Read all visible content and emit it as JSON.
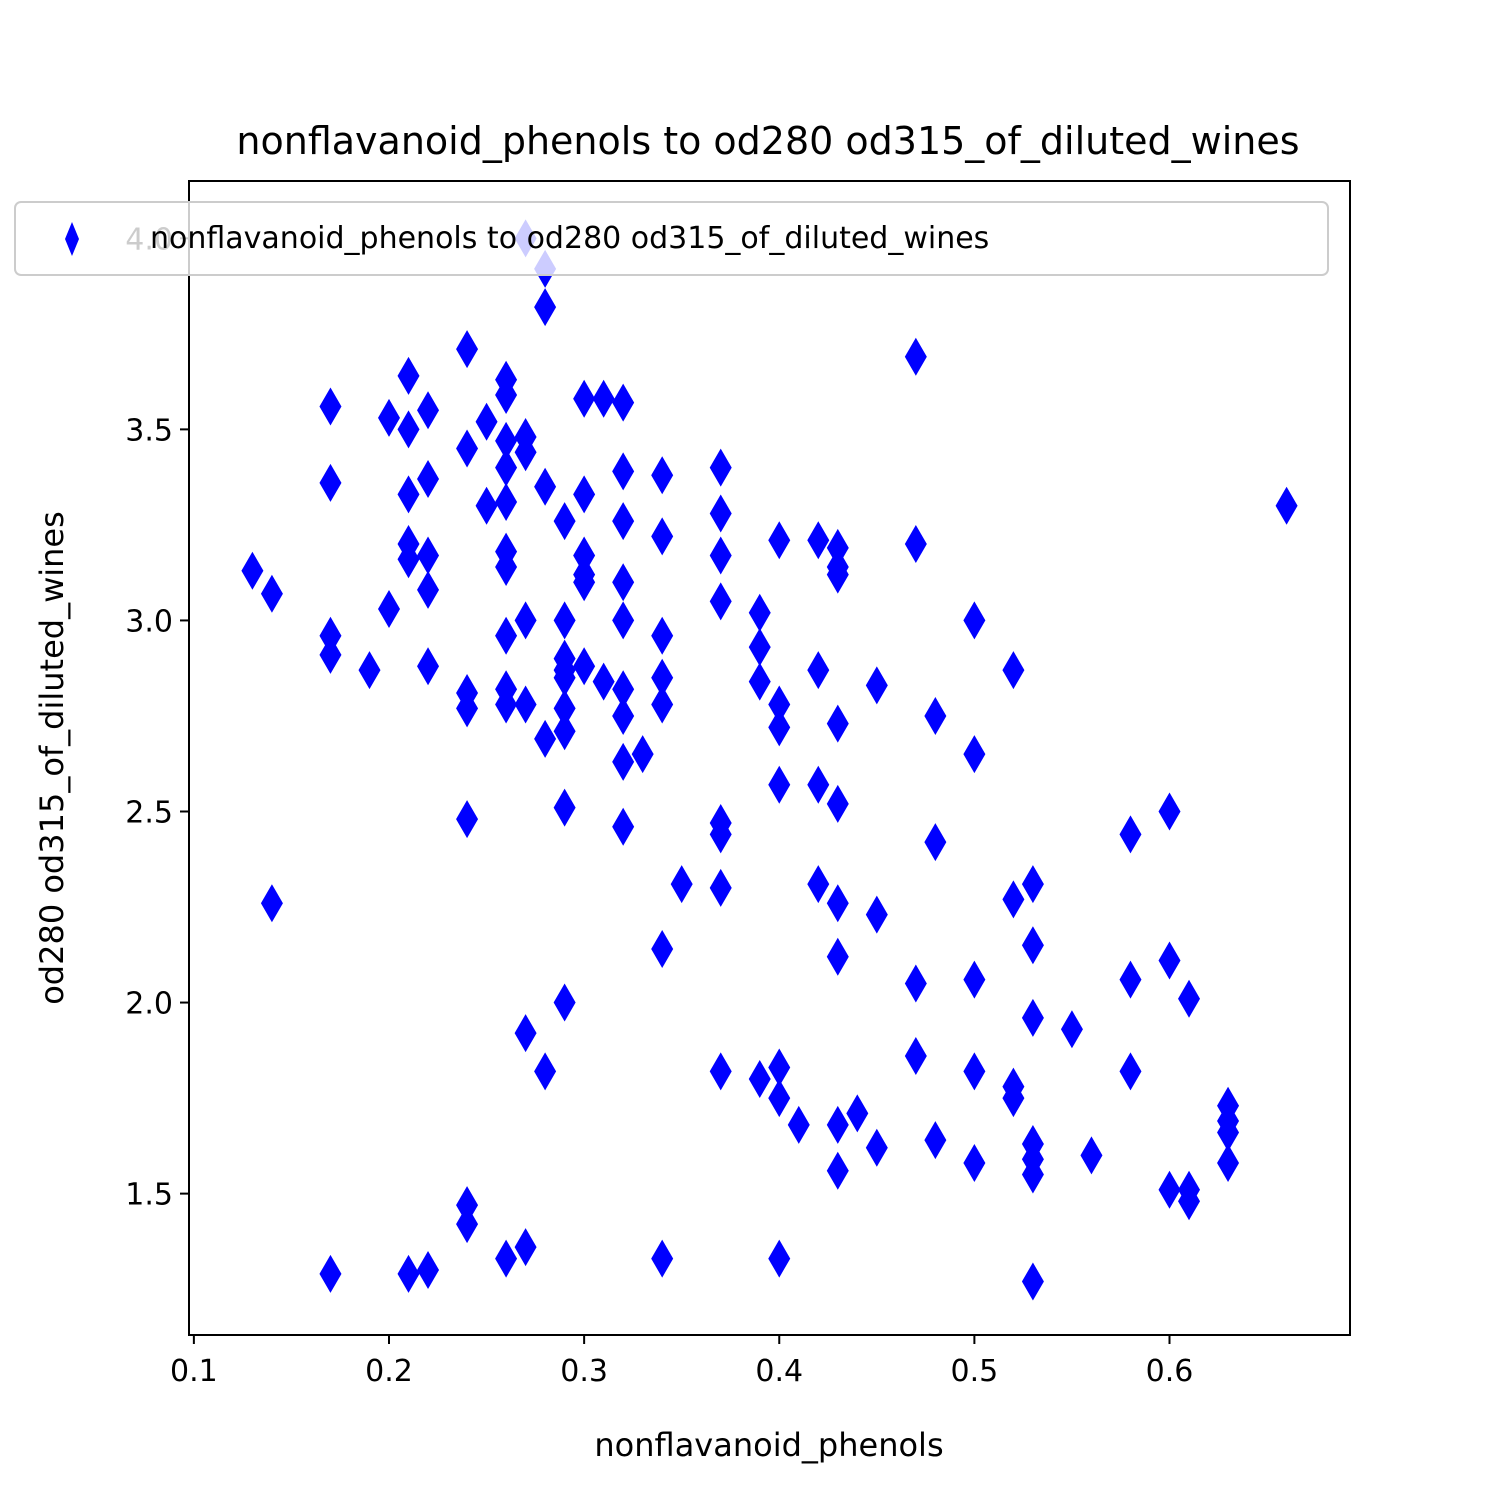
{
  "chart_data": {
    "type": "scatter",
    "title": "nonflavanoid_phenols to od280 od315_of_diluted_wines",
    "xlabel": "nonflavanoid_phenols",
    "ylabel": "od280 od315_of_diluted_wines",
    "xlim": [
      0.0975,
      0.6925
    ],
    "ylim": [
      1.13,
      4.15
    ],
    "xticks": [
      0.1,
      0.2,
      0.3,
      0.4,
      0.5,
      0.6
    ],
    "xtick_labels": [
      "0.1",
      "0.2",
      "0.3",
      "0.4",
      "0.5",
      "0.6"
    ],
    "yticks": [
      1.5,
      2.0,
      2.5,
      3.0,
      3.5,
      4.0
    ],
    "ytick_labels": [
      "1.5",
      "2.0",
      "2.5",
      "3.0",
      "3.5",
      "4.0"
    ],
    "grid": false,
    "legend": {
      "position": "top-left",
      "entries": [
        "nonflavanoid_phenols to od280 od315_of_diluted_wines"
      ]
    },
    "series": [
      {
        "name": "nonflavanoid_phenols to od280 od315_of_diluted_wines",
        "color": "#0000ff",
        "marker": "thin-diamond",
        "points": [
          [
            0.13,
            3.13
          ],
          [
            0.14,
            3.07
          ],
          [
            0.14,
            2.26
          ],
          [
            0.17,
            3.56
          ],
          [
            0.17,
            3.36
          ],
          [
            0.17,
            2.96
          ],
          [
            0.17,
            2.91
          ],
          [
            0.17,
            1.29
          ],
          [
            0.19,
            2.87
          ],
          [
            0.2,
            3.53
          ],
          [
            0.2,
            3.03
          ],
          [
            0.21,
            3.64
          ],
          [
            0.21,
            3.5
          ],
          [
            0.21,
            3.33
          ],
          [
            0.21,
            3.2
          ],
          [
            0.21,
            3.16
          ],
          [
            0.21,
            1.29
          ],
          [
            0.22,
            3.55
          ],
          [
            0.22,
            3.37
          ],
          [
            0.22,
            3.17
          ],
          [
            0.22,
            3.08
          ],
          [
            0.22,
            2.88
          ],
          [
            0.22,
            1.3
          ],
          [
            0.24,
            3.71
          ],
          [
            0.24,
            3.45
          ],
          [
            0.24,
            2.81
          ],
          [
            0.24,
            2.77
          ],
          [
            0.24,
            2.48
          ],
          [
            0.24,
            1.47
          ],
          [
            0.24,
            1.42
          ],
          [
            0.25,
            3.52
          ],
          [
            0.25,
            3.3
          ],
          [
            0.26,
            3.63
          ],
          [
            0.26,
            3.59
          ],
          [
            0.26,
            3.47
          ],
          [
            0.26,
            3.4
          ],
          [
            0.26,
            3.31
          ],
          [
            0.26,
            3.18
          ],
          [
            0.26,
            3.14
          ],
          [
            0.26,
            2.96
          ],
          [
            0.26,
            2.82
          ],
          [
            0.26,
            2.78
          ],
          [
            0.26,
            1.33
          ],
          [
            0.27,
            4.0
          ],
          [
            0.27,
            3.48
          ],
          [
            0.27,
            3.44
          ],
          [
            0.27,
            3.0
          ],
          [
            0.27,
            2.78
          ],
          [
            0.27,
            1.92
          ],
          [
            0.27,
            1.36
          ],
          [
            0.28,
            3.92
          ],
          [
            0.28,
            3.82
          ],
          [
            0.28,
            3.35
          ],
          [
            0.28,
            2.69
          ],
          [
            0.28,
            1.82
          ],
          [
            0.29,
            3.26
          ],
          [
            0.29,
            3.0
          ],
          [
            0.29,
            2.9
          ],
          [
            0.29,
            2.87
          ],
          [
            0.29,
            2.85
          ],
          [
            0.29,
            2.77
          ],
          [
            0.29,
            2.71
          ],
          [
            0.29,
            2.51
          ],
          [
            0.29,
            2.0
          ],
          [
            0.3,
            3.58
          ],
          [
            0.3,
            3.33
          ],
          [
            0.3,
            3.17
          ],
          [
            0.3,
            3.12
          ],
          [
            0.3,
            3.1
          ],
          [
            0.3,
            2.88
          ],
          [
            0.31,
            3.58
          ],
          [
            0.31,
            2.84
          ],
          [
            0.32,
            3.57
          ],
          [
            0.32,
            3.39
          ],
          [
            0.32,
            3.26
          ],
          [
            0.32,
            3.1
          ],
          [
            0.32,
            3.0
          ],
          [
            0.32,
            2.82
          ],
          [
            0.32,
            2.75
          ],
          [
            0.32,
            2.63
          ],
          [
            0.32,
            2.46
          ],
          [
            0.33,
            2.65
          ],
          [
            0.34,
            3.38
          ],
          [
            0.34,
            3.22
          ],
          [
            0.34,
            2.96
          ],
          [
            0.34,
            2.85
          ],
          [
            0.34,
            2.78
          ],
          [
            0.34,
            2.14
          ],
          [
            0.34,
            1.33
          ],
          [
            0.35,
            2.31
          ],
          [
            0.37,
            3.4
          ],
          [
            0.37,
            3.28
          ],
          [
            0.37,
            3.17
          ],
          [
            0.37,
            3.05
          ],
          [
            0.37,
            2.47
          ],
          [
            0.37,
            2.44
          ],
          [
            0.37,
            2.3
          ],
          [
            0.37,
            1.82
          ],
          [
            0.39,
            3.02
          ],
          [
            0.39,
            2.93
          ],
          [
            0.39,
            2.84
          ],
          [
            0.39,
            1.8
          ],
          [
            0.4,
            3.21
          ],
          [
            0.4,
            2.78
          ],
          [
            0.4,
            2.72
          ],
          [
            0.4,
            2.57
          ],
          [
            0.4,
            1.83
          ],
          [
            0.4,
            1.75
          ],
          [
            0.4,
            1.33
          ],
          [
            0.41,
            1.68
          ],
          [
            0.42,
            3.21
          ],
          [
            0.42,
            2.87
          ],
          [
            0.42,
            2.57
          ],
          [
            0.42,
            2.31
          ],
          [
            0.43,
            3.19
          ],
          [
            0.43,
            3.14
          ],
          [
            0.43,
            3.12
          ],
          [
            0.43,
            2.73
          ],
          [
            0.43,
            2.52
          ],
          [
            0.43,
            2.26
          ],
          [
            0.43,
            2.12
          ],
          [
            0.43,
            1.68
          ],
          [
            0.43,
            1.56
          ],
          [
            0.44,
            1.71
          ],
          [
            0.45,
            2.83
          ],
          [
            0.45,
            2.23
          ],
          [
            0.45,
            1.62
          ],
          [
            0.47,
            3.69
          ],
          [
            0.47,
            3.2
          ],
          [
            0.47,
            2.05
          ],
          [
            0.47,
            1.86
          ],
          [
            0.48,
            2.75
          ],
          [
            0.48,
            2.42
          ],
          [
            0.48,
            1.64
          ],
          [
            0.5,
            3.0
          ],
          [
            0.5,
            2.65
          ],
          [
            0.5,
            2.06
          ],
          [
            0.5,
            1.82
          ],
          [
            0.5,
            1.58
          ],
          [
            0.52,
            2.87
          ],
          [
            0.52,
            2.27
          ],
          [
            0.52,
            1.78
          ],
          [
            0.52,
            1.75
          ],
          [
            0.53,
            2.31
          ],
          [
            0.53,
            2.15
          ],
          [
            0.53,
            1.96
          ],
          [
            0.53,
            1.63
          ],
          [
            0.53,
            1.59
          ],
          [
            0.53,
            1.55
          ],
          [
            0.53,
            1.27
          ],
          [
            0.55,
            1.93
          ],
          [
            0.56,
            1.6
          ],
          [
            0.58,
            2.44
          ],
          [
            0.58,
            2.06
          ],
          [
            0.58,
            1.82
          ],
          [
            0.6,
            2.5
          ],
          [
            0.6,
            2.11
          ],
          [
            0.6,
            1.51
          ],
          [
            0.61,
            2.01
          ],
          [
            0.61,
            1.51
          ],
          [
            0.61,
            1.48
          ],
          [
            0.63,
            1.73
          ],
          [
            0.63,
            1.69
          ],
          [
            0.63,
            1.66
          ],
          [
            0.63,
            1.58
          ],
          [
            0.66,
            3.3
          ]
        ]
      }
    ]
  }
}
